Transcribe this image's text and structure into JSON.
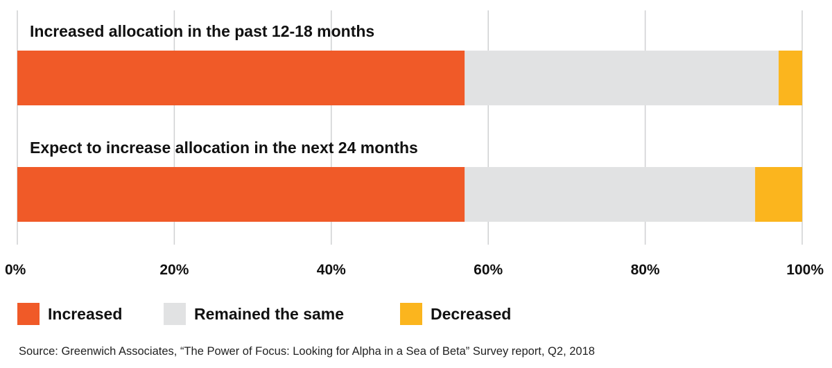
{
  "chart_data": {
    "type": "bar",
    "orientation": "horizontal",
    "stacked": true,
    "categories": [
      "Increased allocation in the past 12-18 months",
      "Expect to increase allocation in the next 24 months"
    ],
    "series": [
      {
        "name": "Increased",
        "values": [
          57,
          57
        ],
        "color": "#F05A28"
      },
      {
        "name": "Remained the same",
        "values": [
          40,
          37
        ],
        "color": "#E1E2E3"
      },
      {
        "name": "Decreased",
        "values": [
          3,
          6
        ],
        "color": "#FBB51E"
      }
    ],
    "xlim": [
      0,
      100
    ],
    "xticks": [
      "0%",
      "20%",
      "40%",
      "60%",
      "80%",
      "100%"
    ],
    "grid": "vertical",
    "legend_position": "bottom"
  },
  "source": "Source: Greenwich Associates, “The Power of Focus: Looking for Alpha in a Sea of Beta” Survey report, Q2, 2018"
}
